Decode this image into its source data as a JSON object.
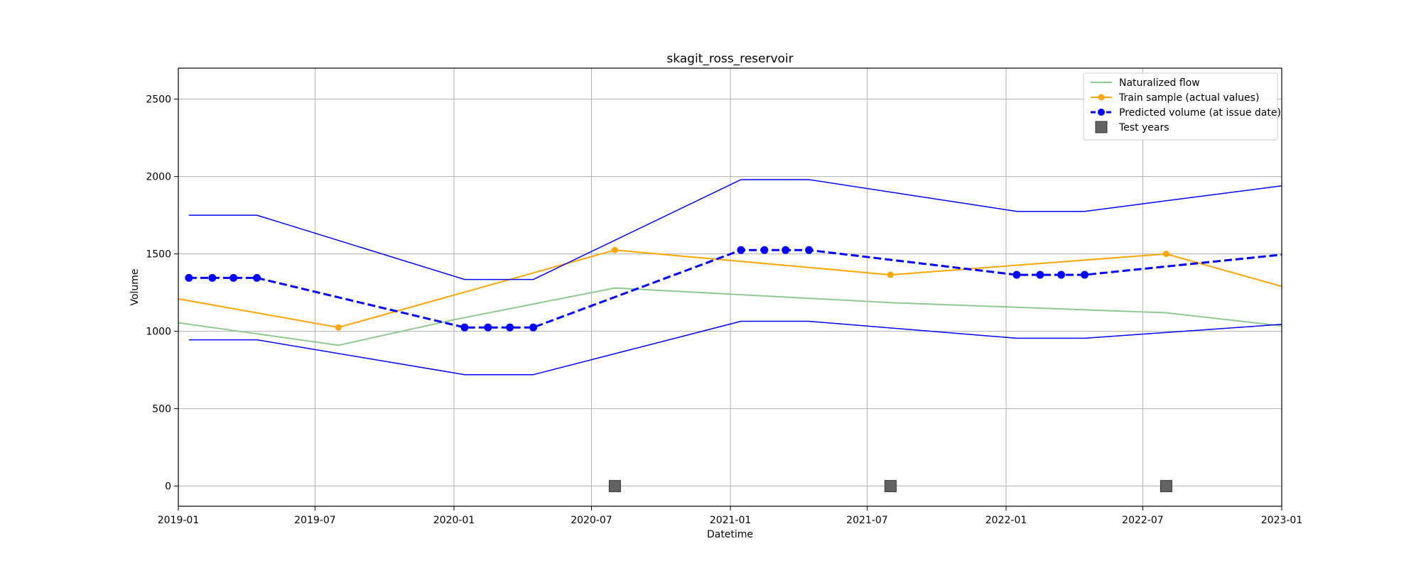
{
  "chart_data": {
    "type": "line",
    "title": "skagit_ross_reservoir",
    "xlabel": "Datetime",
    "ylabel": "Volume",
    "xlim": [
      "2019-01-01",
      "2023-01-01"
    ],
    "ylim": [
      -130,
      2700
    ],
    "x_ticks": [
      "2019-01",
      "2019-07",
      "2020-01",
      "2020-07",
      "2021-01",
      "2021-07",
      "2022-01",
      "2022-07",
      "2023-01"
    ],
    "y_ticks": [
      0,
      500,
      1000,
      1500,
      2000,
      2500
    ],
    "grid": true,
    "legend_position": "top-right",
    "legend": [
      {
        "label": "Naturalized flow",
        "color": "#90c990",
        "style": "line"
      },
      {
        "label": "Train sample (actual values)",
        "color": "#ffa500",
        "style": "line-marker"
      },
      {
        "label": "Predicted volume (at issue date)",
        "color": "#0000ff",
        "style": "dashed-marker"
      },
      {
        "label": "Test years",
        "color": "#636363",
        "style": "square"
      }
    ],
    "series": [
      {
        "name": "Naturalized flow",
        "color": "#90c990",
        "points": [
          [
            "2019-01-01",
            1055
          ],
          [
            "2019-08-01",
            910
          ],
          [
            "2020-01-01",
            1075
          ],
          [
            "2020-08-01",
            1280
          ],
          [
            "2021-08-01",
            1185
          ],
          [
            "2022-08-01",
            1120
          ],
          [
            "2023-01-01",
            1035
          ]
        ]
      },
      {
        "name": "Train sample (actual values)",
        "color": "#ffa500",
        "marker_dates": [
          "2019-08-01",
          "2020-08-01",
          "2021-08-01",
          "2022-08-01"
        ],
        "points": [
          [
            "2019-01-01",
            1210
          ],
          [
            "2019-08-01",
            1025
          ],
          [
            "2020-08-01",
            1525
          ],
          [
            "2021-08-01",
            1365
          ],
          [
            "2022-08-01",
            1500
          ],
          [
            "2023-01-01",
            1290
          ]
        ]
      },
      {
        "name": "Predicted volume (at issue date)",
        "color": "#0000ff",
        "marker_dates": [
          "2019-01-15",
          "2019-02-15",
          "2019-03-15",
          "2019-04-15",
          "2020-01-15",
          "2020-02-15",
          "2020-03-15",
          "2020-04-15",
          "2021-01-15",
          "2021-02-15",
          "2021-03-15",
          "2021-04-15",
          "2022-01-15",
          "2022-02-15",
          "2022-03-15",
          "2022-04-15"
        ],
        "points": [
          [
            "2019-01-15",
            1345
          ],
          [
            "2019-02-15",
            1345
          ],
          [
            "2019-03-15",
            1345
          ],
          [
            "2019-04-15",
            1345
          ],
          [
            "2020-01-15",
            1025
          ],
          [
            "2020-02-15",
            1025
          ],
          [
            "2020-03-15",
            1025
          ],
          [
            "2020-04-15",
            1025
          ],
          [
            "2021-01-15",
            1525
          ],
          [
            "2021-02-15",
            1525
          ],
          [
            "2021-03-15",
            1525
          ],
          [
            "2021-04-15",
            1525
          ],
          [
            "2022-01-15",
            1365
          ],
          [
            "2022-02-15",
            1365
          ],
          [
            "2022-03-15",
            1365
          ],
          [
            "2022-04-15",
            1365
          ],
          [
            "2023-01-01",
            1495
          ]
        ]
      },
      {
        "name": "Prediction upper bound",
        "color": "#0000ff",
        "points": [
          [
            "2019-01-15",
            1750
          ],
          [
            "2019-04-15",
            1750
          ],
          [
            "2020-01-15",
            1335
          ],
          [
            "2020-04-15",
            1335
          ],
          [
            "2021-01-15",
            1980
          ],
          [
            "2021-04-15",
            1980
          ],
          [
            "2022-01-15",
            1775
          ],
          [
            "2022-04-15",
            1775
          ],
          [
            "2023-01-01",
            1940
          ]
        ]
      },
      {
        "name": "Prediction lower bound",
        "color": "#0000ff",
        "points": [
          [
            "2019-01-15",
            945
          ],
          [
            "2019-04-15",
            945
          ],
          [
            "2020-01-15",
            720
          ],
          [
            "2020-04-15",
            720
          ],
          [
            "2021-01-15",
            1065
          ],
          [
            "2021-04-15",
            1065
          ],
          [
            "2022-01-15",
            955
          ],
          [
            "2022-04-15",
            955
          ],
          [
            "2023-01-01",
            1045
          ]
        ]
      },
      {
        "name": "Test years",
        "color": "#636363",
        "points": [
          [
            "2020-08-01",
            0
          ],
          [
            "2021-08-01",
            0
          ],
          [
            "2022-08-01",
            0
          ]
        ]
      }
    ]
  }
}
